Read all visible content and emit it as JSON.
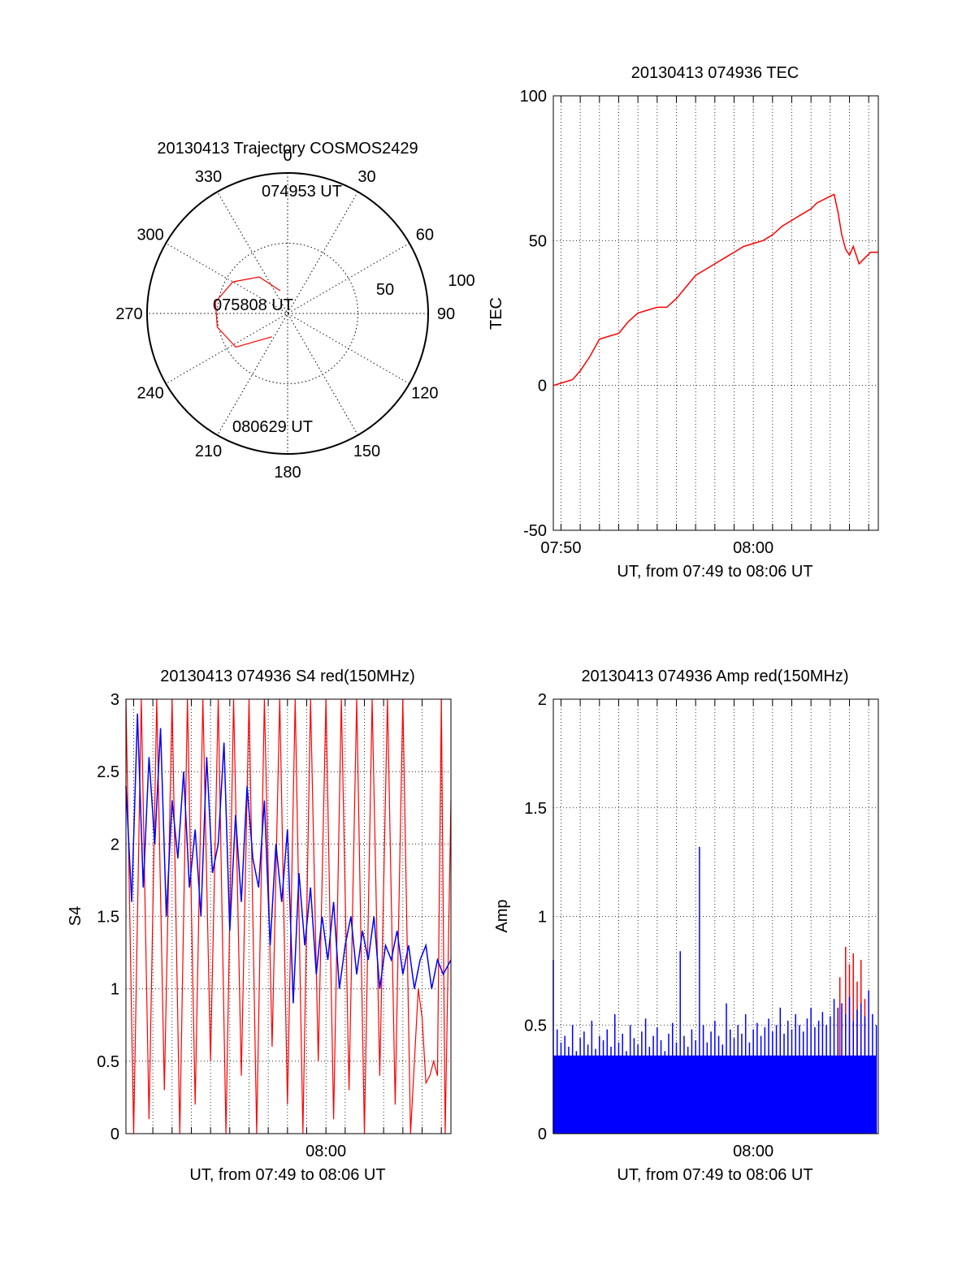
{
  "colors": {
    "red": "#ff0000",
    "blue": "#0000ff",
    "black": "#000000"
  },
  "chart_data": [
    {
      "id": "trajectory",
      "type": "polar",
      "title": "20130413 Trajectory COSMOS2429",
      "azimuth_labels": [
        "0",
        "30",
        "60",
        "90",
        "120",
        "150",
        "180",
        "210",
        "240",
        "270",
        "300",
        "330"
      ],
      "radial_labels": [
        "50",
        "100"
      ],
      "elevation_range": [
        0,
        100
      ],
      "track": [
        {
          "az": 342,
          "el": 83
        },
        {
          "az": 322,
          "el": 67
        },
        {
          "az": 300,
          "el": 55
        },
        {
          "az": 279,
          "el": 48
        },
        {
          "az": 259,
          "el": 49
        },
        {
          "az": 237,
          "el": 56
        },
        {
          "az": 214,
          "el": 80
        }
      ],
      "annotations": [
        {
          "text": "074953 UT",
          "at": "start"
        },
        {
          "text": "075808 UT",
          "at": "middle"
        },
        {
          "text": "080629 UT",
          "at": "end"
        }
      ]
    },
    {
      "id": "tec",
      "type": "line",
      "title": "20130413 074936 TEC",
      "xlabel": "UT, from 07:49 to 08:06 UT",
      "ylabel": "TEC",
      "xlim": [
        49.6,
        66.5
      ],
      "ylim": [
        -50,
        100
      ],
      "xticks": [
        {
          "v": 50,
          "label": "07:50"
        },
        {
          "v": 60,
          "label": "08:00"
        }
      ],
      "yticks": [
        -50,
        0,
        50,
        100
      ],
      "grid": true,
      "series": [
        {
          "color": "red",
          "x": [
            49.6,
            50.1,
            50.6,
            51.0,
            51.5,
            52.0,
            52.5,
            53.0,
            53.5,
            54.0,
            54.5,
            55.0,
            55.5,
            56.0,
            56.5,
            57.0,
            57.5,
            58.0,
            58.5,
            59.0,
            59.5,
            60.0,
            60.5,
            61.0,
            61.5,
            62.0,
            62.5,
            63.0,
            63.3,
            63.6,
            63.9,
            64.2,
            64.4,
            64.6,
            64.8,
            65.0,
            65.2,
            65.5,
            65.8,
            66.1,
            66.5
          ],
          "y": [
            0,
            1,
            2,
            5,
            10,
            16,
            17,
            18,
            22,
            25,
            26,
            27,
            27,
            30,
            34,
            38,
            40,
            42,
            44,
            46,
            48,
            49,
            50,
            52,
            55,
            57,
            59,
            61,
            63,
            64,
            65,
            66,
            60,
            52,
            47,
            45,
            48,
            42,
            44,
            46,
            46
          ]
        }
      ]
    },
    {
      "id": "s4",
      "type": "line",
      "title": "20130413 074936 S4 red(150MHz)",
      "xlabel": "UT, from 07:49 to 08:06 UT",
      "ylabel": "S4",
      "xlim": [
        49.6,
        66.5
      ],
      "ylim": [
        0,
        3
      ],
      "xticks": [
        {
          "v": 60,
          "label": "08:00"
        }
      ],
      "yticks": [
        0,
        0.5,
        1,
        1.5,
        2,
        2.5,
        3
      ],
      "grid": true,
      "series": [
        {
          "name": "red",
          "color": "red",
          "x": [
            49.6,
            50.0,
            50.4,
            50.8,
            51.2,
            51.6,
            52.0,
            52.4,
            52.8,
            53.2,
            53.6,
            54.0,
            54.4,
            54.8,
            55.2,
            55.6,
            56.0,
            56.4,
            56.8,
            57.2,
            57.6,
            58.0,
            58.4,
            58.8,
            59.2,
            59.6,
            60.0,
            60.4,
            60.8,
            61.2,
            61.6,
            62.0,
            62.4,
            62.8,
            63.2,
            63.6,
            64.0,
            64.4,
            64.8,
            65.0,
            65.2,
            65.4,
            65.6,
            65.8,
            66.0,
            66.2,
            66.5
          ],
          "y": [
            3,
            0,
            3,
            0.1,
            3,
            0.3,
            3,
            0,
            3,
            0.2,
            3,
            0.5,
            3,
            0,
            3,
            0.4,
            3,
            0,
            3,
            0.6,
            3,
            0.2,
            3,
            0,
            3,
            0.5,
            3,
            0.1,
            3,
            0.3,
            3,
            0,
            3,
            0.4,
            3,
            0.2,
            3,
            0,
            1.0,
            0.8,
            0.35,
            0.4,
            0.5,
            0.4,
            3,
            0,
            2.3
          ]
        },
        {
          "name": "blue",
          "color": "blue",
          "x": [
            49.6,
            49.9,
            50.2,
            50.5,
            50.8,
            51.1,
            51.4,
            51.7,
            52.0,
            52.3,
            52.6,
            52.9,
            53.2,
            53.5,
            53.8,
            54.1,
            54.4,
            54.7,
            55.0,
            55.3,
            55.6,
            55.9,
            56.2,
            56.5,
            56.8,
            57.1,
            57.4,
            57.7,
            58.0,
            58.3,
            58.6,
            58.9,
            59.2,
            59.5,
            59.8,
            60.1,
            60.4,
            60.7,
            61.0,
            61.3,
            61.6,
            61.9,
            62.2,
            62.5,
            62.8,
            63.1,
            63.4,
            63.7,
            64.0,
            64.3,
            64.6,
            64.9,
            65.2,
            65.5,
            65.8,
            66.1,
            66.5
          ],
          "y": [
            2.4,
            1.6,
            2.9,
            1.7,
            2.6,
            2.0,
            2.8,
            1.5,
            2.3,
            1.9,
            2.5,
            1.7,
            2.1,
            1.5,
            2.6,
            1.8,
            2.0,
            2.7,
            1.4,
            2.2,
            1.6,
            2.4,
            1.9,
            1.7,
            2.3,
            1.3,
            2.0,
            1.6,
            2.1,
            0.9,
            1.8,
            1.3,
            1.7,
            1.1,
            1.5,
            1.2,
            1.6,
            1.0,
            1.3,
            1.5,
            1.1,
            1.4,
            1.2,
            1.5,
            1.0,
            1.3,
            1.2,
            1.4,
            1.1,
            1.3,
            1.0,
            1.2,
            1.3,
            1.0,
            1.2,
            1.1,
            1.2
          ]
        }
      ]
    },
    {
      "id": "amp",
      "type": "bar",
      "title": "20130413 074936 Amp red(150MHz)",
      "xlabel": "UT, from 07:49 to 08:06 UT",
      "ylabel": "Amp",
      "xlim": [
        49.6,
        66.5
      ],
      "ylim": [
        0,
        2
      ],
      "xticks": [
        {
          "v": 60,
          "label": "08:00"
        }
      ],
      "yticks": [
        0,
        0.5,
        1,
        1.5,
        2
      ],
      "grid": true,
      "series": [
        {
          "name": "red",
          "color": "red",
          "x": [
            64.5,
            64.8,
            65.0,
            65.2,
            65.4,
            65.6,
            65.8
          ],
          "y": [
            0.72,
            0.86,
            0.78,
            0.83,
            0.7,
            0.8,
            0.62
          ]
        },
        {
          "name": "blue",
          "color": "blue",
          "x": [
            49.6,
            49.8,
            50.0,
            50.2,
            50.4,
            50.6,
            50.8,
            51.0,
            51.2,
            51.4,
            51.6,
            51.8,
            52.0,
            52.2,
            52.4,
            52.6,
            52.8,
            53.0,
            53.2,
            53.4,
            53.6,
            53.8,
            54.0,
            54.2,
            54.4,
            54.6,
            54.8,
            55.0,
            55.2,
            55.4,
            55.6,
            55.8,
            56.0,
            56.2,
            56.4,
            56.6,
            56.8,
            57.0,
            57.2,
            57.4,
            57.6,
            57.8,
            58.0,
            58.2,
            58.4,
            58.6,
            58.8,
            59.0,
            59.2,
            59.4,
            59.6,
            59.8,
            60.0,
            60.2,
            60.4,
            60.6,
            60.8,
            61.0,
            61.2,
            61.4,
            61.6,
            61.8,
            62.0,
            62.2,
            62.4,
            62.6,
            62.8,
            63.0,
            63.2,
            63.4,
            63.6,
            63.8,
            64.0,
            64.2,
            64.4,
            64.6,
            64.8,
            65.0,
            65.2,
            65.4,
            65.6,
            65.8,
            66.0,
            66.2,
            66.4
          ],
          "y": [
            0.8,
            0.48,
            0.42,
            0.45,
            0.4,
            0.5,
            0.38,
            0.44,
            0.47,
            0.41,
            0.52,
            0.39,
            0.45,
            0.43,
            0.48,
            0.4,
            0.55,
            0.42,
            0.46,
            0.38,
            0.5,
            0.44,
            0.41,
            0.47,
            0.53,
            0.4,
            0.45,
            0.49,
            0.43,
            0.38,
            0.46,
            0.51,
            0.42,
            0.84,
            0.45,
            0.4,
            0.48,
            0.43,
            1.32,
            0.5,
            0.42,
            0.47,
            0.52,
            0.45,
            0.41,
            0.6,
            0.48,
            0.44,
            0.5,
            0.46,
            0.55,
            0.42,
            0.48,
            0.51,
            0.45,
            0.49,
            0.53,
            0.47,
            0.5,
            0.58,
            0.46,
            0.52,
            0.48,
            0.55,
            0.5,
            0.47,
            0.53,
            0.58,
            0.49,
            0.52,
            0.56,
            0.5,
            0.54,
            0.62,
            0.58,
            0.6,
            0.55,
            0.63,
            0.52,
            0.57,
            0.6,
            0.54,
            0.66,
            0.55,
            0.5
          ]
        }
      ]
    }
  ]
}
